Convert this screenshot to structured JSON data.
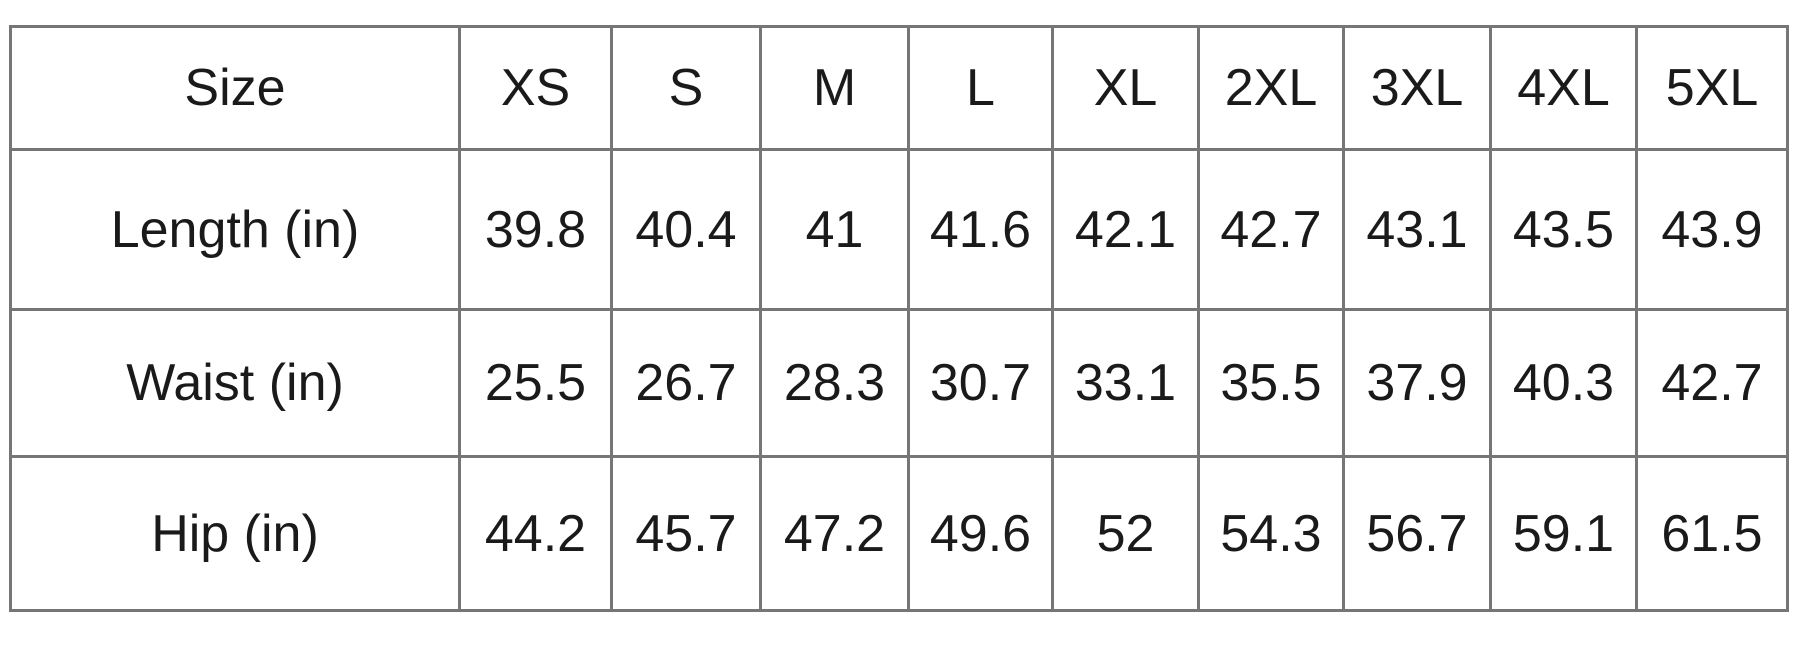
{
  "table": {
    "header": [
      "Size",
      "XS",
      "S",
      "M",
      "L",
      "XL",
      "2XL",
      "3XL",
      "4XL",
      "5XL"
    ],
    "rows": [
      [
        "Length (in)",
        "39.8",
        "40.4",
        "41",
        "41.6",
        "42.1",
        "42.7",
        "43.1",
        "43.5",
        "43.9"
      ],
      [
        "Waist (in)",
        "25.5",
        "26.7",
        "28.3",
        "30.7",
        "33.1",
        "35.5",
        "37.9",
        "40.3",
        "42.7"
      ],
      [
        "Hip (in)",
        "44.2",
        "45.7",
        "47.2",
        "49.6",
        "52",
        "54.3",
        "56.7",
        "59.1",
        "61.5"
      ]
    ]
  }
}
